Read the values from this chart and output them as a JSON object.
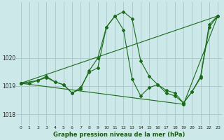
{
  "background_color": "#cce8e8",
  "grid_color": "#aacccc",
  "line_color": "#1a6b1a",
  "xlabel": "Graphe pression niveau de la mer (hPa)",
  "xlim": [
    -0.5,
    23.5
  ],
  "ylim": [
    1017.6,
    1022.0
  ],
  "yticks": [
    1018,
    1019,
    1020
  ],
  "xticks": [
    0,
    1,
    2,
    3,
    4,
    5,
    6,
    7,
    8,
    9,
    10,
    11,
    12,
    13,
    14,
    15,
    16,
    17,
    18,
    19,
    20,
    21,
    22,
    23
  ],
  "series1_x": [
    0,
    1,
    2,
    3,
    4,
    5,
    6,
    7,
    8,
    9,
    10,
    11,
    12,
    13,
    14,
    15,
    16,
    17,
    18,
    19,
    20,
    21,
    22,
    23
  ],
  "series1_y": [
    1019.1,
    1019.1,
    1019.2,
    1019.35,
    1019.15,
    1019.05,
    1018.75,
    1018.9,
    1019.55,
    1020.0,
    1021.1,
    1021.5,
    1021.65,
    1021.4,
    1019.9,
    1019.35,
    1019.05,
    1018.85,
    1018.75,
    1018.4,
    1018.8,
    1019.35,
    1021.2,
    1021.5
  ],
  "series2_x": [
    0,
    2,
    3,
    4,
    5,
    6,
    7,
    8,
    9,
    10,
    11,
    12,
    13,
    14,
    15,
    16,
    17,
    18,
    19,
    20,
    21,
    22,
    23
  ],
  "series2_y": [
    1019.1,
    1019.2,
    1019.3,
    1019.15,
    1019.05,
    1018.75,
    1018.95,
    1019.5,
    1019.65,
    1021.1,
    1021.5,
    1021.0,
    1019.25,
    1018.65,
    1018.95,
    1019.05,
    1018.75,
    1018.65,
    1018.4,
    1018.8,
    1019.3,
    1021.1,
    1021.5
  ],
  "series3_x": [
    0,
    23
  ],
  "series3_y": [
    1019.1,
    1021.5
  ],
  "series4_x": [
    0,
    19
  ],
  "series4_y": [
    1019.1,
    1018.35
  ],
  "series5_x": [
    19,
    23
  ],
  "series5_y": [
    1018.35,
    1021.5
  ]
}
